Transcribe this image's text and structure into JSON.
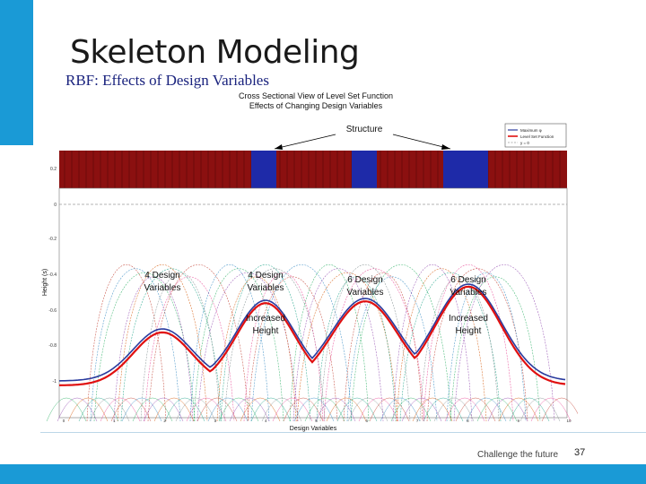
{
  "slide": {
    "title": "Skeleton Modeling",
    "subtitle": "RBF: Effects of Design Variables",
    "footer": "Challenge the future",
    "page_number": "37"
  },
  "figure": {
    "title_line1": "Cross Sectional View of Level Set Function",
    "title_line2": "Effects of Changing Design Variables",
    "structure_label": "Structure",
    "xlabel": "Design Variables",
    "ylabel": "Height (s)",
    "legend": [
      "Maximum φ",
      "Level Set Function",
      "y = 0"
    ],
    "y_ticks": [
      "0.2",
      "0",
      "-0.2",
      "-0.4",
      "-0.6",
      "-0.8",
      "-1"
    ],
    "x_ticks": [
      "0",
      "1",
      "2",
      "3",
      "4",
      "5",
      "6",
      "7",
      "8",
      "9",
      "10"
    ],
    "annotations": [
      {
        "line1": "4 Design",
        "line2": "Variables"
      },
      {
        "line1": "4 Design",
        "line2": "Variables"
      },
      {
        "line1": "6 Design",
        "line2": "Variables"
      },
      {
        "line1": "6 Design",
        "line2": "Variables"
      },
      {
        "line1": "Increased",
        "line2": "Height"
      },
      {
        "line1": "Increased",
        "line2": "Height"
      }
    ],
    "colors": {
      "structure_red": "#8b1010",
      "structure_blue": "#1e2aa8",
      "level_set": "#e01010",
      "max_phi": "#2a3b9e",
      "zero_line": "#9a9a9a",
      "accent": "#1a9ad6"
    }
  }
}
